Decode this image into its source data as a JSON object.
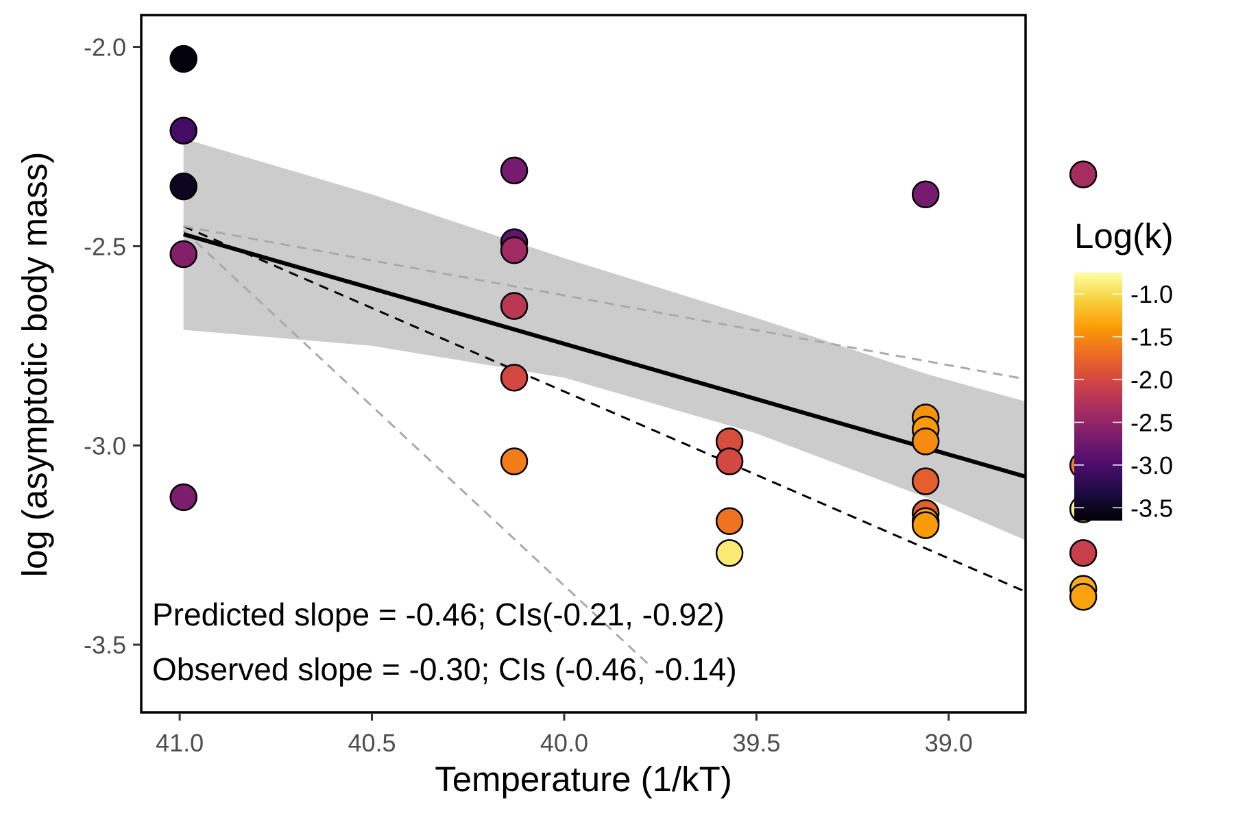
{
  "chart_data": {
    "type": "scatter",
    "xlabel": "Temperature (1/kT)",
    "ylabel": "log (asymptotic body mass)",
    "x_reversed": true,
    "xlim": [
      41.1,
      38.8
    ],
    "ylim": [
      -3.67,
      -1.92
    ],
    "x_ticks": [
      41.0,
      40.5,
      40.0,
      39.5,
      39.0
    ],
    "x_tick_labels": [
      "41.0",
      "40.5",
      "40.0",
      "39.5",
      "39.0"
    ],
    "y_ticks": [
      -2.0,
      -2.5,
      -3.0,
      -3.5
    ],
    "y_tick_labels": [
      "-2.0",
      "-2.5",
      "-3.0",
      "-3.5"
    ],
    "grid": false,
    "color_scale": {
      "title": "Log(k)",
      "palette": "inferno",
      "range": [
        -3.65,
        -0.75
      ],
      "ticks": [
        -1.0,
        -1.5,
        -2.0,
        -2.5,
        -3.0,
        -3.5
      ],
      "tick_labels": [
        "-1.0",
        "-1.5",
        "-2.0",
        "-2.5",
        "-3.0",
        "-3.5"
      ],
      "stops": [
        "#000004",
        "#1b0c41",
        "#4a0c6b",
        "#781c6d",
        "#a52c60",
        "#cf4446",
        "#ed6925",
        "#fb9b06",
        "#f7d13d",
        "#fcffa4"
      ],
      "placement": "right"
    },
    "points": [
      {
        "x": 40.99,
        "y": -2.03,
        "k": -3.6
      },
      {
        "x": 40.99,
        "y": -2.21,
        "k": -3.05
      },
      {
        "x": 40.99,
        "y": -2.35,
        "k": -3.5
      },
      {
        "x": 40.99,
        "y": -2.52,
        "k": -2.6
      },
      {
        "x": 40.99,
        "y": -3.13,
        "k": -2.65
      },
      {
        "x": 40.13,
        "y": -2.31,
        "k": -2.7
      },
      {
        "x": 40.13,
        "y": -2.49,
        "k": -2.85
      },
      {
        "x": 40.13,
        "y": -2.51,
        "k": -2.4
      },
      {
        "x": 40.13,
        "y": -2.65,
        "k": -2.2
      },
      {
        "x": 40.13,
        "y": -2.83,
        "k": -2.0
      },
      {
        "x": 40.13,
        "y": -3.04,
        "k": -1.6
      },
      {
        "x": 39.57,
        "y": -2.99,
        "k": -1.95
      },
      {
        "x": 39.57,
        "y": -3.04,
        "k": -2.0
      },
      {
        "x": 39.57,
        "y": -3.19,
        "k": -1.65
      },
      {
        "x": 39.57,
        "y": -3.27,
        "k": -0.9
      },
      {
        "x": 39.06,
        "y": -2.37,
        "k": -2.7
      },
      {
        "x": 39.06,
        "y": -2.93,
        "k": -1.45
      },
      {
        "x": 39.06,
        "y": -2.96,
        "k": -1.4
      },
      {
        "x": 39.06,
        "y": -2.99,
        "k": -1.5
      },
      {
        "x": 39.06,
        "y": -3.09,
        "k": -1.8
      },
      {
        "x": 39.06,
        "y": -3.17,
        "k": -1.8
      },
      {
        "x": 39.06,
        "y": -3.19,
        "k": -1.3
      },
      {
        "x": 39.06,
        "y": -3.2,
        "k": -1.4
      },
      {
        "x": 38.65,
        "y": -2.32,
        "k": -2.35
      },
      {
        "x": 38.65,
        "y": -3.05,
        "k": -1.6
      },
      {
        "x": 38.65,
        "y": -3.16,
        "k": -0.85
      },
      {
        "x": 38.65,
        "y": -3.27,
        "k": -2.1
      },
      {
        "x": 38.65,
        "y": -3.36,
        "k": -1.3
      },
      {
        "x": 38.65,
        "y": -3.38,
        "k": -1.35
      }
    ],
    "fit_line": {
      "x": [
        40.99,
        38.65
      ],
      "y": [
        -2.47,
        -3.12
      ]
    },
    "confidence_band": {
      "x": [
        40.99,
        40.5,
        40.0,
        39.5,
        39.06,
        38.65
      ],
      "upper": [
        -2.23,
        -2.37,
        -2.53,
        -2.68,
        -2.82,
        -2.93
      ],
      "lower": [
        -2.71,
        -2.75,
        -2.83,
        -2.97,
        -3.13,
        -3.3
      ]
    },
    "predicted_lines": [
      {
        "role": "predicted",
        "x": [
          40.99,
          38.65
        ],
        "y": [
          -2.45,
          -3.43
        ],
        "color": "#000000"
      },
      {
        "role": "upper-ci",
        "x": [
          40.99,
          38.65
        ],
        "y": [
          -2.45,
          -2.86
        ],
        "color": "#aaaaaa"
      },
      {
        "role": "lower-ci",
        "x": [
          40.99,
          39.78
        ],
        "y": [
          -2.46,
          -3.55
        ],
        "color": "#aaaaaa"
      }
    ],
    "annotations": [
      "Predicted slope = -0.46; CIs(-0.21, -0.92)",
      "Observed slope = -0.30; CIs (-0.46, -0.14)"
    ]
  }
}
